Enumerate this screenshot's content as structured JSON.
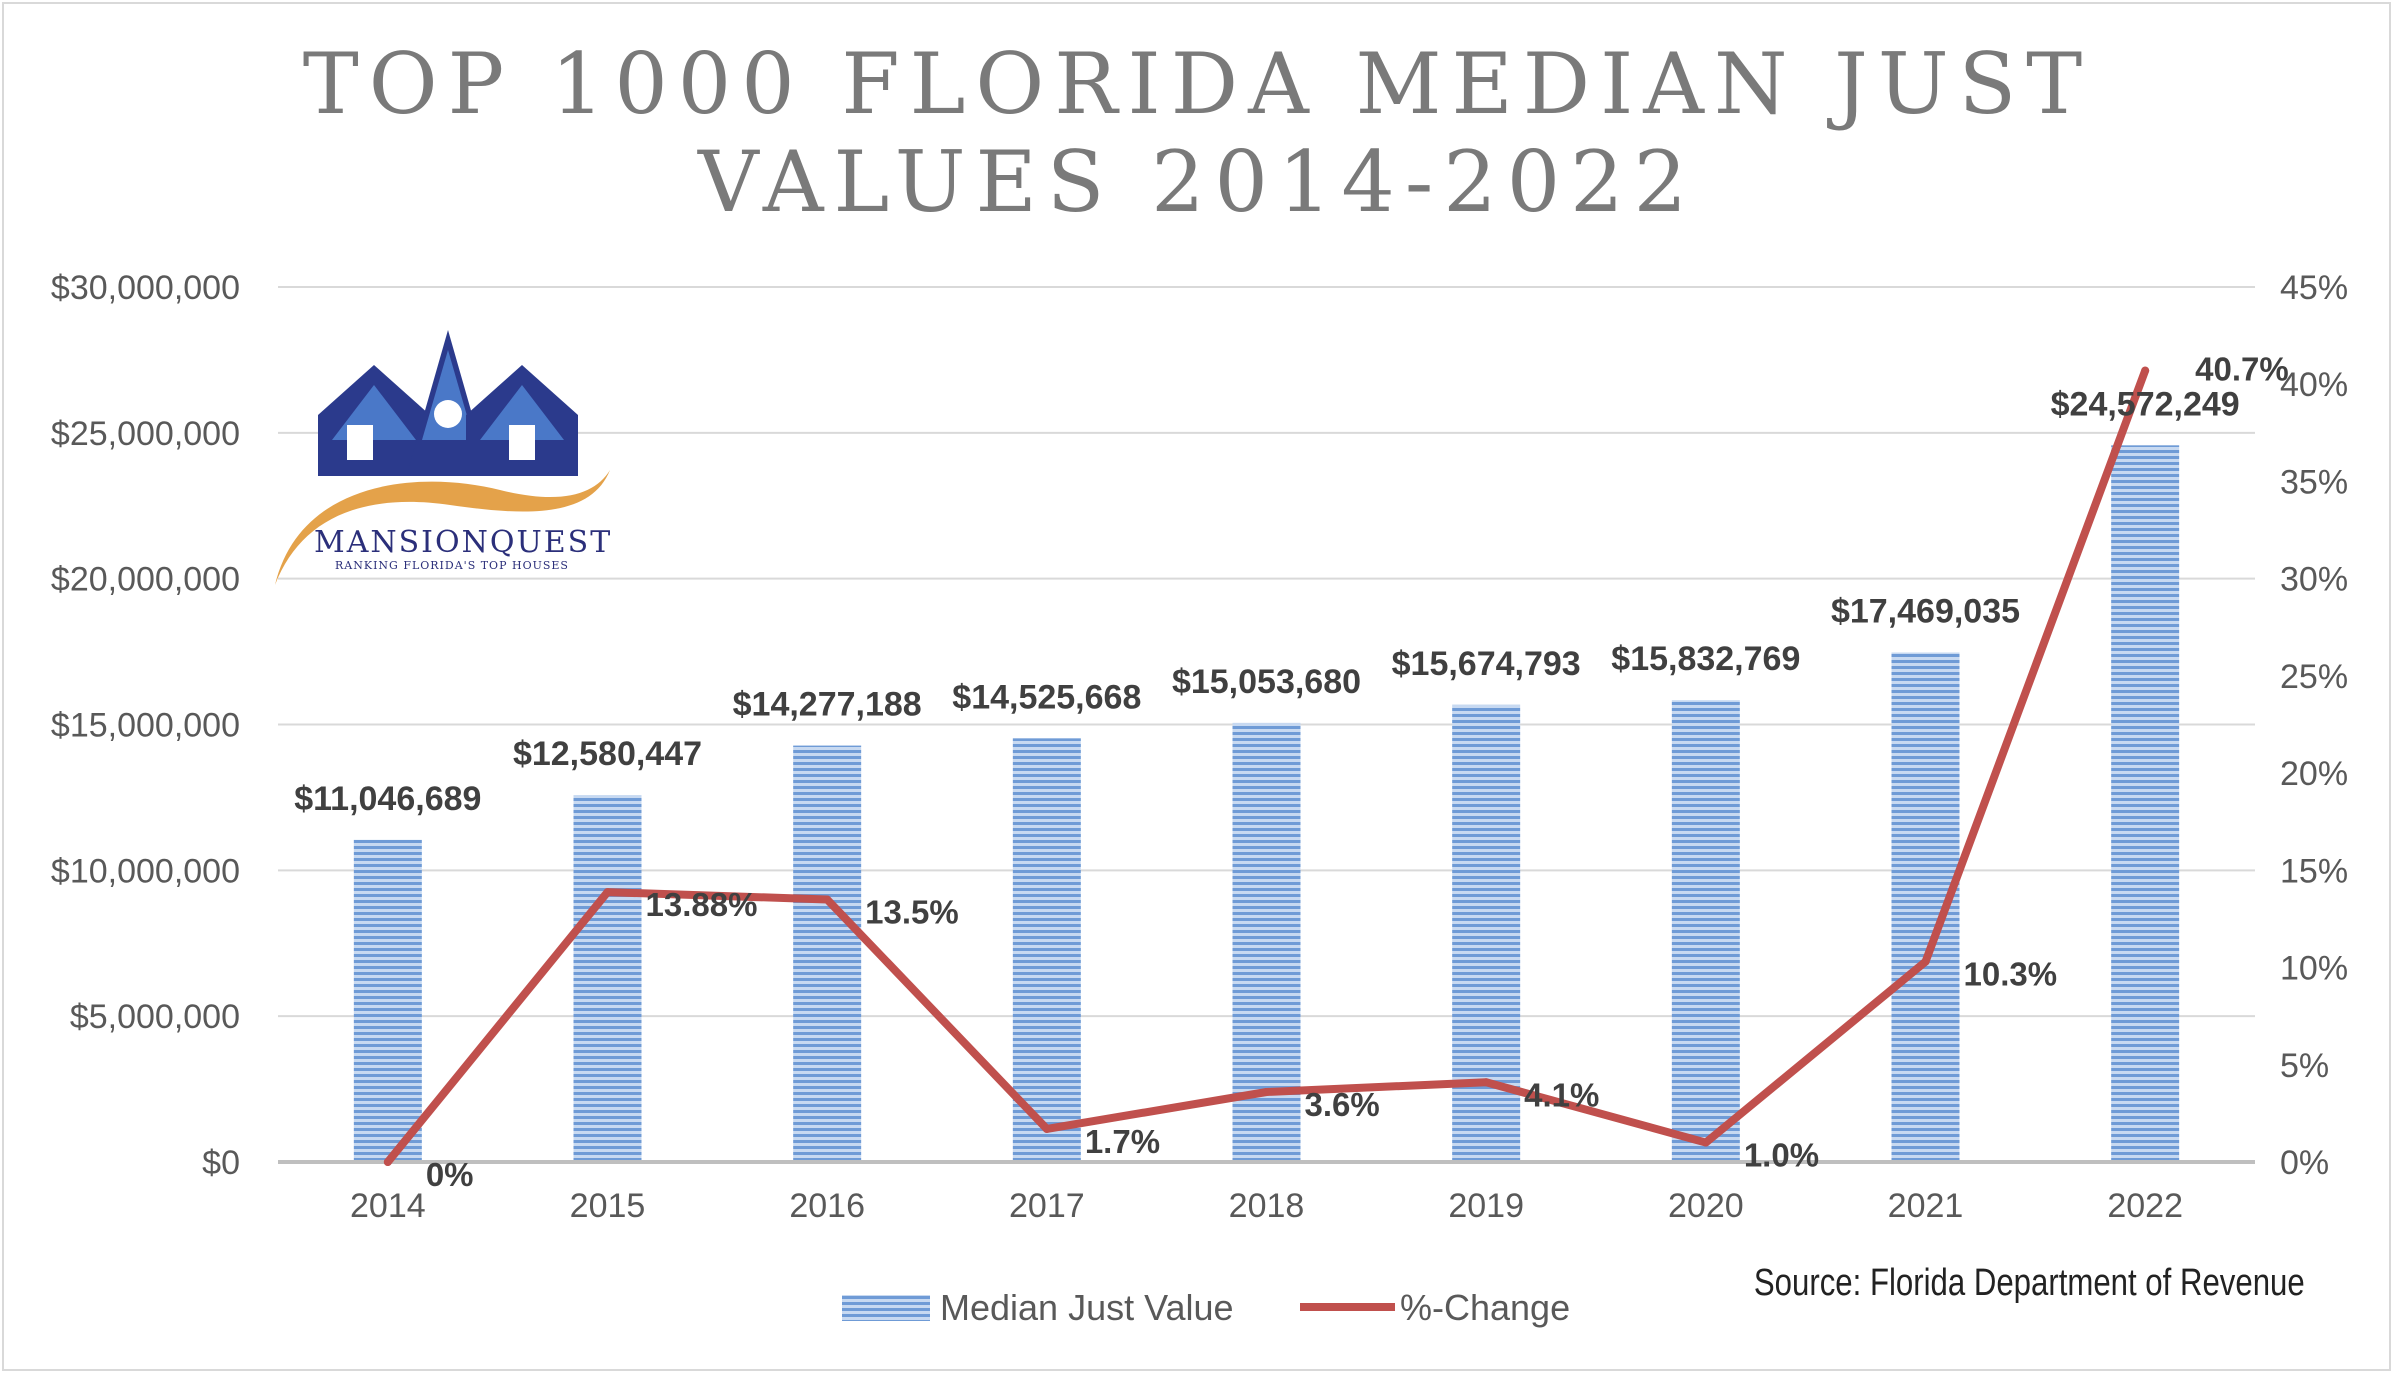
{
  "title": {
    "line1": "TOP 1000 FLORIDA MEDIAN JUST",
    "line2": "VALUES 2014-2022"
  },
  "source": "Source: Florida Department of Revenue",
  "logo": {
    "name": "MANSIONQUEST",
    "tagline": "RANKING FLORIDA'S TOP HOUSES"
  },
  "colors": {
    "bar": "#6f9bd6",
    "bar_stripe": "#c7d9f1",
    "line": "#c0504d",
    "grid": "#d9d9d9"
  },
  "chart_data": {
    "type": "bar",
    "title": "TOP 1000 FLORIDA MEDIAN JUST VALUES 2014-2022",
    "categories": [
      "2014",
      "2015",
      "2016",
      "2017",
      "2018",
      "2019",
      "2020",
      "2021",
      "2022"
    ],
    "series": [
      {
        "name": "Median Just Value",
        "type": "bar",
        "axis": "left",
        "values": [
          11046689,
          12580447,
          14277188,
          14525668,
          15053680,
          15674793,
          15832769,
          17469035,
          24572249
        ],
        "labels": [
          "$11,046,689",
          "$12,580,447",
          "$14,277,188",
          "$14,525,668",
          "$15,053,680",
          "$15,674,793",
          "$15,832,769",
          "$17,469,035",
          "$24,572,249"
        ]
      },
      {
        "name": "%-Change",
        "type": "line",
        "axis": "right",
        "values": [
          0,
          13.88,
          13.5,
          1.7,
          3.6,
          4.1,
          1.0,
          10.3,
          40.7
        ],
        "labels": [
          "0%",
          "13.88%",
          "13.5%",
          "1.7%",
          "3.6%",
          "4.1%",
          "1.0%",
          "10.3%",
          "40.7%"
        ]
      }
    ],
    "y_left": {
      "range": [
        0,
        30000000
      ],
      "ticks": [
        0,
        5000000,
        10000000,
        15000000,
        20000000,
        25000000,
        30000000
      ],
      "tick_labels": [
        "$0",
        "$5,000,000",
        "$10,000,000",
        "$15,000,000",
        "$20,000,000",
        "$25,000,000",
        "$30,000,000"
      ]
    },
    "y_right": {
      "range": [
        0,
        45
      ],
      "ticks": [
        0,
        5,
        10,
        15,
        20,
        25,
        30,
        35,
        40,
        45
      ],
      "tick_labels": [
        "0%",
        "5%",
        "10%",
        "15%",
        "20%",
        "25%",
        "30%",
        "35%",
        "40%",
        "45%"
      ]
    },
    "grid": true,
    "legend": "bottom"
  }
}
